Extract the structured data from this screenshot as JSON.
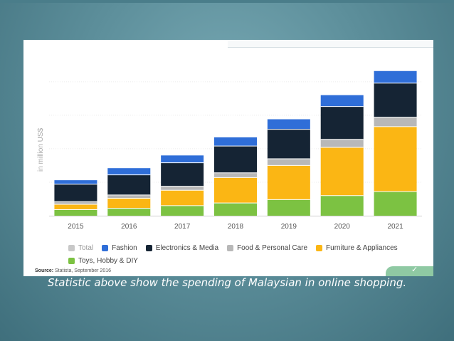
{
  "chart_data": {
    "type": "bar",
    "stacked": true,
    "ylabel": "in million US$",
    "categories": [
      "2015",
      "2016",
      "2017",
      "2018",
      "2019",
      "2020",
      "2021"
    ],
    "series": [
      {
        "name": "Toys, Hobby & DIY",
        "color": "#7cc242",
        "values": [
          9,
          11,
          15,
          19,
          24,
          30,
          36
        ]
      },
      {
        "name": "Furniture & Appliances",
        "color": "#fbb614",
        "values": [
          8,
          15,
          23,
          38,
          51,
          72,
          97
        ]
      },
      {
        "name": "Food & Personal Care",
        "color": "#b8b8b8",
        "values": [
          4,
          5,
          6,
          7,
          10,
          12,
          14
        ]
      },
      {
        "name": "Electronics & Media",
        "color": "#152434",
        "values": [
          26,
          30,
          35,
          40,
          44,
          49,
          51
        ]
      },
      {
        "name": "Fashion",
        "color": "#2f6ed8",
        "values": [
          6,
          10,
          11,
          13,
          15,
          17,
          18
        ]
      }
    ],
    "legend": [
      {
        "name": "Total",
        "color": "#c8c8c8",
        "muted": true
      },
      {
        "name": "Fashion",
        "color": "#2f6ed8"
      },
      {
        "name": "Electronics & Media",
        "color": "#152434"
      },
      {
        "name": "Food & Personal Care",
        "color": "#b8b8b8"
      },
      {
        "name": "Furniture & Appliances",
        "color": "#fbb614"
      },
      {
        "name": "Toys, Hobby & DIY",
        "color": "#7cc242"
      }
    ],
    "legend_position": "bottom",
    "grid": true,
    "ylim": [
      0,
      220
    ]
  },
  "source": {
    "label": "Source:",
    "text": "Statista, September 2016"
  },
  "caption": "Statistic above show the spending of Malaysian in online shopping.",
  "corner_tab_glyph": "✓"
}
